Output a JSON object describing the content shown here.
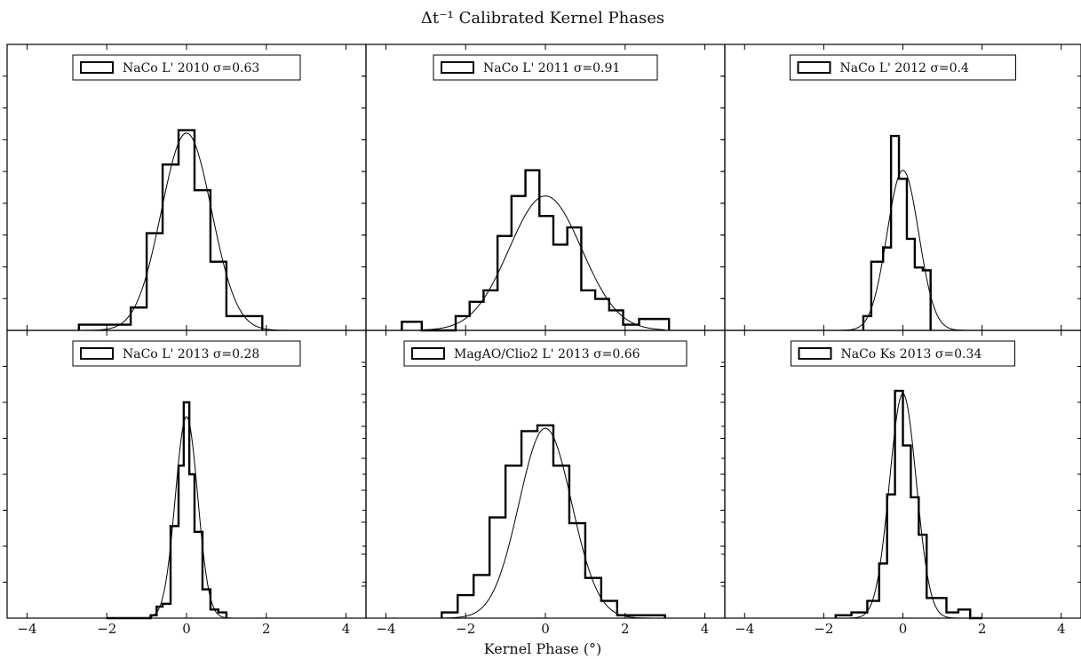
{
  "figure": {
    "title": "Δt⁻¹  Calibrated Kernel Phases",
    "xlabel": "Kernel Phase (°)"
  },
  "chart_data": [
    {
      "type": "histogram",
      "legend": "NaCo L' 2010 σ=0.63",
      "sigma": 0.63,
      "xlim": [
        -4.5,
        4.5
      ],
      "ylim": [
        0,
        1
      ],
      "xticks": [
        -4,
        -2,
        0,
        2,
        4
      ],
      "bin_edges": [
        -2.7,
        -1.4,
        -1.0,
        -0.6,
        -0.2,
        0.2,
        0.6,
        1.0,
        1.9
      ],
      "counts": [
        0.02,
        0.08,
        0.34,
        0.58,
        0.7,
        0.49,
        0.24,
        0.05
      ],
      "gaussian_peak": 0.69
    },
    {
      "type": "histogram",
      "legend": "NaCo L' 2011 σ=0.91",
      "sigma": 0.91,
      "xlim": [
        -4.5,
        4.5
      ],
      "ylim": [
        0,
        1
      ],
      "xticks": [
        -4,
        -2,
        0,
        2,
        4
      ],
      "bin_edges": [
        -3.6,
        -3.1,
        -2.25,
        -1.9,
        -1.55,
        -1.2,
        -0.85,
        -0.5,
        -0.15,
        0.2,
        0.55,
        0.9,
        1.25,
        1.6,
        1.95,
        2.35,
        2.7,
        3.1
      ],
      "counts": [
        0.03,
        0.0,
        0.05,
        0.1,
        0.14,
        0.33,
        0.47,
        0.56,
        0.4,
        0.3,
        0.36,
        0.14,
        0.11,
        0.07,
        0.02,
        0.04,
        0.04
      ],
      "gaussian_peak": 0.47
    },
    {
      "type": "histogram",
      "legend": "NaCo L' 2012 σ=0.4",
      "sigma": 0.4,
      "xlim": [
        -4.5,
        4.5
      ],
      "ylim": [
        0,
        1
      ],
      "xticks": [
        -4,
        -2,
        0,
        2,
        4
      ],
      "bin_edges": [
        -1.0,
        -0.8,
        -0.5,
        -0.3,
        -0.1,
        0.1,
        0.3,
        0.5,
        0.7
      ],
      "counts": [
        0.05,
        0.24,
        0.29,
        0.68,
        0.53,
        0.32,
        0.22,
        0.21
      ],
      "gaussian_peak": 0.56
    },
    {
      "type": "histogram",
      "legend": "NaCo L' 2013 σ=0.28",
      "sigma": 0.28,
      "xlim": [
        -4.5,
        4.5
      ],
      "ylim": [
        0,
        1
      ],
      "xticks": [
        -4,
        -2,
        0,
        2,
        4
      ],
      "bin_edges": [
        -2.0,
        -1.8,
        -0.9,
        -0.75,
        -0.6,
        -0.4,
        -0.2,
        -0.07,
        0.07,
        0.2,
        0.4,
        0.6,
        0.8,
        1.0
      ],
      "counts": [
        0.0,
        0.0,
        0.01,
        0.04,
        0.05,
        0.32,
        0.53,
        0.75,
        0.5,
        0.3,
        0.1,
        0.03,
        0.02
      ],
      "gaussian_peak": 0.7
    },
    {
      "type": "histogram",
      "legend": "MagAO/Clio2 L' 2013 σ=0.66",
      "sigma": 0.66,
      "xlim": [
        -4.5,
        4.5
      ],
      "ylim": [
        0,
        1
      ],
      "xticks": [
        -4,
        -2,
        0,
        2,
        4
      ],
      "bin_edges": [
        -2.6,
        -2.2,
        -1.8,
        -1.4,
        -1.0,
        -0.6,
        -0.2,
        0.2,
        0.6,
        1.0,
        1.4,
        1.8,
        3.0
      ],
      "counts": [
        0.02,
        0.08,
        0.15,
        0.35,
        0.53,
        0.65,
        0.67,
        0.53,
        0.33,
        0.14,
        0.06,
        0.01
      ],
      "gaussian_peak": 0.66
    },
    {
      "type": "histogram",
      "legend": "NaCo Ks 2013 σ=0.34",
      "sigma": 0.34,
      "xlim": [
        -4.5,
        4.5
      ],
      "ylim": [
        0,
        1
      ],
      "xticks": [
        -4,
        -2,
        0,
        2,
        4
      ],
      "bin_edges": [
        -1.7,
        -1.3,
        -0.9,
        -0.6,
        -0.4,
        -0.2,
        0.0,
        0.2,
        0.4,
        0.6,
        0.8,
        1.1,
        1.4,
        1.7,
        2.0
      ],
      "counts": [
        0.01,
        0.02,
        0.06,
        0.19,
        0.43,
        0.79,
        0.6,
        0.42,
        0.29,
        0.07,
        0.07,
        0.02,
        0.03,
        0.0
      ],
      "gaussian_peak": 0.78
    }
  ]
}
